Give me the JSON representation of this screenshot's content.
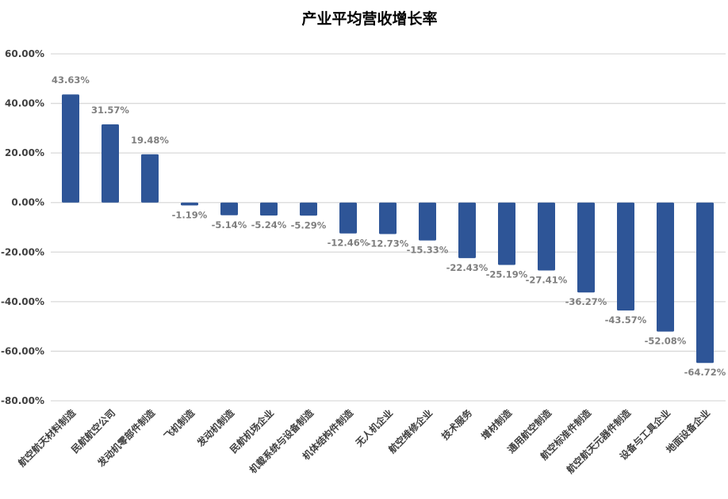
{
  "chart_data": {
    "type": "bar",
    "title": "产业平均营收增长率",
    "xlabel": "",
    "ylabel": "",
    "ylim": [
      -80,
      60
    ],
    "y_ticks": [
      60,
      40,
      20,
      0,
      -20,
      -40,
      -60,
      -80
    ],
    "y_tick_labels": [
      "60.00%",
      "40.00%",
      "20.00%",
      "0.00%",
      "-20.00%",
      "-40.00%",
      "-60.00%",
      "-80.00%"
    ],
    "grid": true,
    "legend": "none",
    "bar_color": "#2E5597",
    "categories": [
      "航空航天材料制造",
      "民航航空公司",
      "发动机零部件制造",
      "飞机制造",
      "发动机制造",
      "民航机场企业",
      "机载系统与设备制造",
      "机体结构件制造",
      "无人机企业",
      "航空维修企业",
      "技术服务",
      "增材制造",
      "通用航空制造",
      "航空标准件制造",
      "航空航天元器件制造",
      "设备与工具企业",
      "地面设备企业"
    ],
    "values": [
      43.63,
      31.57,
      19.48,
      -1.19,
      -5.14,
      -5.24,
      -5.29,
      -12.46,
      -12.73,
      -15.33,
      -22.43,
      -25.19,
      -27.41,
      -36.27,
      -43.57,
      -52.08,
      -64.72
    ],
    "data_labels": [
      "43.63%",
      "31.57%",
      "19.48%",
      "-1.19%",
      "-5.14%",
      "-5.24%",
      "-5.29%",
      "-12.46%",
      "-12.73%",
      "-15.33%",
      "-22.43%",
      "-25.19%",
      "-27.41%",
      "-36.27%",
      "-43.57%",
      "-52.08%",
      "-64.72%"
    ]
  }
}
